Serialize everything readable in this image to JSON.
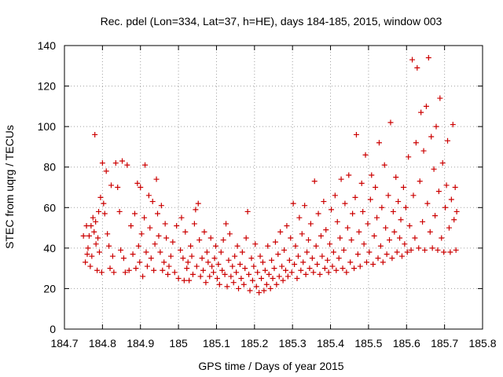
{
  "chart_data": {
    "type": "scatter",
    "title": "Rec. pdel (Lon=334, Lat=37, h=HE), days 184-185, 2015, window 003",
    "xlabel": "GPS time / Days of year 2015",
    "ylabel": "STEC from uqrg / TECUs",
    "xlim": [
      184.7,
      185.8
    ],
    "ylim": [
      0,
      140
    ],
    "xticks": [
      184.7,
      184.8,
      184.9,
      185.0,
      185.1,
      185.2,
      185.3,
      185.4,
      185.5,
      185.6,
      185.7,
      185.8
    ],
    "xtick_labels": [
      "184.7",
      "184.8",
      "184.9",
      "185",
      "185.1",
      "185.2",
      "185.3",
      "185.4",
      "185.5",
      "185.6",
      "185.7",
      "185.8"
    ],
    "yticks": [
      0,
      20,
      40,
      60,
      80,
      100,
      120,
      140
    ],
    "ytick_labels": [
      "0",
      "20",
      "40",
      "60",
      "80",
      "100",
      "120",
      "140"
    ],
    "grid": true,
    "marker": "+",
    "colors": {
      "points": "#cc0000",
      "grid": "#a0a0a0",
      "axis": "#000000"
    },
    "series": [
      {
        "name": "STEC",
        "points": [
          [
            184.755,
            33
          ],
          [
            184.76,
            37
          ],
          [
            184.765,
            46
          ],
          [
            184.77,
            51
          ],
          [
            184.775,
            55
          ],
          [
            184.78,
            96
          ],
          [
            184.783,
            42
          ],
          [
            184.786,
            29
          ],
          [
            184.79,
            58
          ],
          [
            184.795,
            65
          ],
          [
            184.75,
            46
          ],
          [
            184.758,
            51
          ],
          [
            184.762,
            40
          ],
          [
            184.768,
            31
          ],
          [
            184.772,
            36
          ],
          [
            184.778,
            48
          ],
          [
            184.782,
            53
          ],
          [
            184.788,
            45
          ],
          [
            184.792,
            38
          ],
          [
            184.798,
            28
          ],
          [
            184.8,
            82
          ],
          [
            184.803,
            62
          ],
          [
            184.806,
            57
          ],
          [
            184.81,
            78
          ],
          [
            184.813,
            47
          ],
          [
            184.817,
            41
          ],
          [
            184.82,
            30
          ],
          [
            184.823,
            71
          ],
          [
            184.827,
            36
          ],
          [
            184.83,
            28
          ],
          [
            184.835,
            82
          ],
          [
            184.84,
            70
          ],
          [
            184.845,
            58
          ],
          [
            184.848,
            39
          ],
          [
            184.852,
            83
          ],
          [
            184.856,
            35
          ],
          [
            184.86,
            28
          ],
          [
            184.865,
            81
          ],
          [
            184.87,
            29
          ],
          [
            184.875,
            51
          ],
          [
            184.88,
            37
          ],
          [
            184.885,
            57
          ],
          [
            184.888,
            30
          ],
          [
            184.892,
            72
          ],
          [
            184.895,
            41
          ],
          [
            184.898,
            33
          ],
          [
            184.9,
            70
          ],
          [
            184.903,
            47
          ],
          [
            184.906,
            26
          ],
          [
            184.91,
            55
          ],
          [
            184.912,
            81
          ],
          [
            184.915,
            38
          ],
          [
            184.918,
            31
          ],
          [
            184.922,
            66
          ],
          [
            184.925,
            50
          ],
          [
            184.928,
            35
          ],
          [
            184.932,
            63
          ],
          [
            184.935,
            29
          ],
          [
            184.938,
            42
          ],
          [
            184.942,
            74
          ],
          [
            184.945,
            57
          ],
          [
            184.948,
            46
          ],
          [
            184.952,
            38
          ],
          [
            184.955,
            61
          ],
          [
            184.958,
            29
          ],
          [
            184.962,
            33
          ],
          [
            184.965,
            52
          ],
          [
            184.968,
            45
          ],
          [
            184.972,
            27
          ],
          [
            184.975,
            31
          ],
          [
            184.98,
            36
          ],
          [
            184.985,
            43
          ],
          [
            184.99,
            28
          ],
          [
            184.995,
            51
          ],
          [
            185.0,
            25
          ],
          [
            185.005,
            39
          ],
          [
            185.008,
            55
          ],
          [
            185.012,
            35
          ],
          [
            185.015,
            24
          ],
          [
            185.018,
            48
          ],
          [
            185.022,
            30
          ],
          [
            185.025,
            33
          ],
          [
            185.028,
            24
          ],
          [
            185.032,
            41
          ],
          [
            185.035,
            36
          ],
          [
            185.038,
            27
          ],
          [
            185.042,
            52
          ],
          [
            185.045,
            59
          ],
          [
            185.048,
            31
          ],
          [
            185.052,
            62
          ],
          [
            185.055,
            44
          ],
          [
            185.058,
            26
          ],
          [
            185.062,
            35
          ],
          [
            185.065,
            29
          ],
          [
            185.068,
            48
          ],
          [
            185.072,
            23
          ],
          [
            185.075,
            38
          ],
          [
            185.078,
            33
          ],
          [
            185.082,
            26
          ],
          [
            185.085,
            45
          ],
          [
            185.088,
            31
          ],
          [
            185.092,
            28
          ],
          [
            185.095,
            35
          ],
          [
            185.098,
            41
          ],
          [
            185.102,
            25
          ],
          [
            185.105,
            32
          ],
          [
            185.108,
            22
          ],
          [
            185.112,
            38
          ],
          [
            185.115,
            29
          ],
          [
            185.118,
            44
          ],
          [
            185.122,
            27
          ],
          [
            185.125,
            52
          ],
          [
            185.128,
            21
          ],
          [
            185.132,
            34
          ],
          [
            185.135,
            47
          ],
          [
            185.138,
            26
          ],
          [
            185.142,
            31
          ],
          [
            185.145,
            23
          ],
          [
            185.148,
            36
          ],
          [
            185.152,
            28
          ],
          [
            185.155,
            41
          ],
          [
            185.158,
            20
          ],
          [
            185.162,
            32
          ],
          [
            185.165,
            25
          ],
          [
            185.168,
            38
          ],
          [
            185.172,
            22
          ],
          [
            185.175,
            30
          ],
          [
            185.178,
            45
          ],
          [
            185.182,
            58
          ],
          [
            185.185,
            27
          ],
          [
            185.188,
            19
          ],
          [
            185.192,
            35
          ],
          [
            185.195,
            24
          ],
          [
            185.198,
            31
          ],
          [
            185.202,
            42
          ],
          [
            185.205,
            21
          ],
          [
            185.208,
            28
          ],
          [
            185.212,
            18
          ],
          [
            185.215,
            36
          ],
          [
            185.218,
            25
          ],
          [
            185.222,
            33
          ],
          [
            185.225,
            19
          ],
          [
            185.228,
            29
          ],
          [
            185.232,
            22
          ],
          [
            185.235,
            41
          ],
          [
            185.238,
            27
          ],
          [
            185.242,
            20
          ],
          [
            185.245,
            34
          ],
          [
            185.248,
            25
          ],
          [
            185.252,
            30
          ],
          [
            185.255,
            43
          ],
          [
            185.258,
            22
          ],
          [
            185.262,
            37
          ],
          [
            185.265,
            26
          ],
          [
            185.268,
            48
          ],
          [
            185.272,
            31
          ],
          [
            185.275,
            24
          ],
          [
            185.278,
            39
          ],
          [
            185.282,
            29
          ],
          [
            185.285,
            51
          ],
          [
            185.288,
            26
          ],
          [
            185.292,
            34
          ],
          [
            185.295,
            45
          ],
          [
            185.298,
            28
          ],
          [
            185.302,
            62
          ],
          [
            185.305,
            32
          ],
          [
            185.308,
            41
          ],
          [
            185.312,
            25
          ],
          [
            185.315,
            36
          ],
          [
            185.318,
            55
          ],
          [
            185.322,
            29
          ],
          [
            185.325,
            47
          ],
          [
            185.328,
            33
          ],
          [
            185.332,
            61
          ],
          [
            185.335,
            27
          ],
          [
            185.338,
            38
          ],
          [
            185.342,
            44
          ],
          [
            185.345,
            30
          ],
          [
            185.348,
            52
          ],
          [
            185.352,
            35
          ],
          [
            185.355,
            28
          ],
          [
            185.358,
            73
          ],
          [
            185.362,
            41
          ],
          [
            185.365,
            32
          ],
          [
            185.368,
            57
          ],
          [
            185.372,
            27
          ],
          [
            185.375,
            46
          ],
          [
            185.378,
            36
          ],
          [
            185.382,
            63
          ],
          [
            185.385,
            30
          ],
          [
            185.388,
            49
          ],
          [
            185.392,
            34
          ],
          [
            185.395,
            28
          ],
          [
            185.398,
            42
          ],
          [
            185.402,
            59
          ],
          [
            185.405,
            31
          ],
          [
            185.408,
            38
          ],
          [
            185.412,
            66
          ],
          [
            185.415,
            29
          ],
          [
            185.418,
            53
          ],
          [
            185.422,
            35
          ],
          [
            185.425,
            45
          ],
          [
            185.428,
            74
          ],
          [
            185.432,
            30
          ],
          [
            185.435,
            39
          ],
          [
            185.438,
            62
          ],
          [
            185.442,
            28
          ],
          [
            185.445,
            50
          ],
          [
            185.448,
            76
          ],
          [
            185.452,
            33
          ],
          [
            185.455,
            44
          ],
          [
            185.458,
            57
          ],
          [
            185.462,
            30
          ],
          [
            185.465,
            65
          ],
          [
            185.468,
            96
          ],
          [
            185.472,
            37
          ],
          [
            185.475,
            48
          ],
          [
            185.478,
            31
          ],
          [
            185.482,
            72
          ],
          [
            185.485,
            58
          ],
          [
            185.488,
            42
          ],
          [
            185.492,
            86
          ],
          [
            185.495,
            33
          ],
          [
            185.498,
            52
          ],
          [
            185.502,
            38
          ],
          [
            185.505,
            64
          ],
          [
            185.508,
            76
          ],
          [
            185.512,
            32
          ],
          [
            185.515,
            46
          ],
          [
            185.518,
            70
          ],
          [
            185.522,
            55
          ],
          [
            185.525,
            35
          ],
          [
            185.528,
            92
          ],
          [
            185.532,
            41
          ],
          [
            185.535,
            60
          ],
          [
            185.538,
            33
          ],
          [
            185.542,
            81
          ],
          [
            185.545,
            50
          ],
          [
            185.548,
            37
          ],
          [
            185.552,
            66
          ],
          [
            185.555,
            44
          ],
          [
            185.558,
            102
          ],
          [
            185.562,
            35
          ],
          [
            185.565,
            58
          ],
          [
            185.568,
            48
          ],
          [
            185.572,
            75
          ],
          [
            185.575,
            38
          ],
          [
            185.578,
            63
          ],
          [
            185.582,
            45
          ],
          [
            185.585,
            54
          ],
          [
            185.588,
            36
          ],
          [
            185.592,
            70
          ],
          [
            185.595,
            42
          ],
          [
            185.598,
            60
          ],
          [
            185.602,
            38
          ],
          [
            185.605,
            85
          ],
          [
            185.608,
            51
          ],
          [
            185.612,
            39
          ],
          [
            185.615,
            133
          ],
          [
            185.618,
            66
          ],
          [
            185.622,
            45
          ],
          [
            185.625,
            92
          ],
          [
            185.628,
            129
          ],
          [
            185.632,
            40
          ],
          [
            185.635,
            73
          ],
          [
            185.638,
            107
          ],
          [
            185.642,
            53
          ],
          [
            185.645,
            88
          ],
          [
            185.648,
            39
          ],
          [
            185.652,
            110
          ],
          [
            185.655,
            62
          ],
          [
            185.658,
            134
          ],
          [
            185.662,
            48
          ],
          [
            185.665,
            95
          ],
          [
            185.668,
            40
          ],
          [
            185.672,
            79
          ],
          [
            185.675,
            56
          ],
          [
            185.678,
            100
          ],
          [
            185.682,
            39
          ],
          [
            185.685,
            68
          ],
          [
            185.688,
            114
          ],
          [
            185.692,
            45
          ],
          [
            185.695,
            82
          ],
          [
            185.698,
            38
          ],
          [
            185.702,
            60
          ],
          [
            185.705,
            71
          ],
          [
            185.708,
            93
          ],
          [
            185.712,
            50
          ],
          [
            185.715,
            38
          ],
          [
            185.718,
            64
          ],
          [
            185.722,
            101
          ],
          [
            185.725,
            54
          ],
          [
            185.728,
            70
          ],
          [
            185.73,
            39
          ],
          [
            185.732,
            58
          ]
        ]
      }
    ]
  }
}
